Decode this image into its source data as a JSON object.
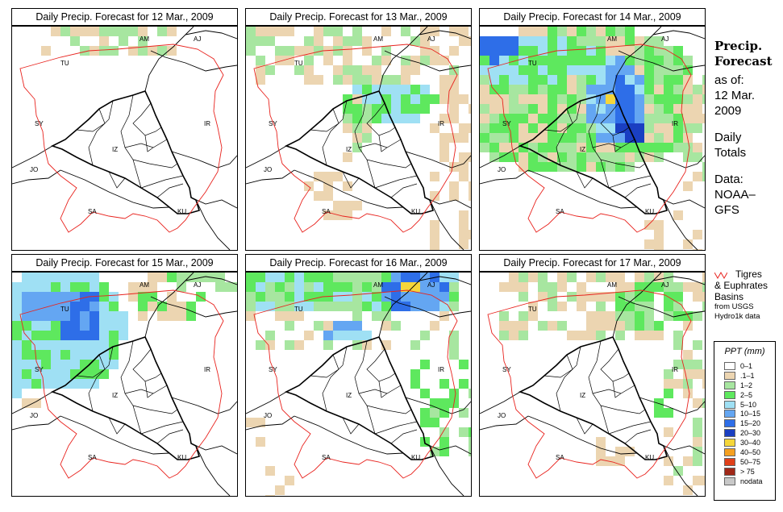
{
  "panels": [
    {
      "title": "Daily Precip. Forecast for  12 Mar., 2009",
      "day": 0
    },
    {
      "title": "Daily Precip. Forecast for  13 Mar., 2009",
      "day": 1
    },
    {
      "title": "Daily Precip. Forecast for  14 Mar., 2009",
      "day": 2
    },
    {
      "title": "Daily Precip. Forecast for  15 Mar., 2009",
      "day": 3
    },
    {
      "title": "Daily Precip. Forecast for  16 Mar., 2009",
      "day": 4
    },
    {
      "title": "Daily Precip. Forecast for  17 Mar., 2009",
      "day": 5
    }
  ],
  "country_labels": [
    "AM",
    "AJ",
    "TU",
    "SY",
    "IR",
    "IZ",
    "JO",
    "SA",
    "KU"
  ],
  "sidebar": {
    "heading1": "Precip.",
    "heading2": "Forecast",
    "asof": "as of:",
    "date1": "12 Mar.",
    "date2": "2009",
    "daily1": "Daily",
    "daily2": "Totals",
    "data1": "Data:",
    "data2": "NOAA–",
    "data3": "GFS"
  },
  "basin_note": {
    "line1": "Tigres",
    "line2": "& Euphrates",
    "line3": "Basins",
    "line4": "from USGS",
    "line5": "Hydro1k data",
    "line_color": "#e8231e"
  },
  "legend": {
    "title": "PPT (mm)",
    "items": [
      {
        "label": "0–1",
        "color": "#ffffff"
      },
      {
        "label": ".1–1",
        "color": "#ecd5b1"
      },
      {
        "label": "1–2",
        "color": "#a7e6a0"
      },
      {
        "label": "2–5",
        "color": "#5ee85e"
      },
      {
        "label": "5–10",
        "color": "#9fe0f4"
      },
      {
        "label": "10–15",
        "color": "#64a6f2"
      },
      {
        "label": "15–20",
        "color": "#2e6ee8"
      },
      {
        "label": "20–30",
        "color": "#1a3fc2"
      },
      {
        "label": "30–40",
        "color": "#f5d63a"
      },
      {
        "label": "40–50",
        "color": "#f5a020"
      },
      {
        "label": "50–75",
        "color": "#e0401a"
      },
      {
        "label": "> 75",
        "color": "#a02818"
      },
      {
        "label": "nodata",
        "color": "#c8c8c8"
      }
    ]
  },
  "precip_forecast": [
    {
      "day": "12 Mar., 2009",
      "areas": [
        {
          "region": "north strip near TU/AM",
          "class": ".1-1"
        },
        {
          "region": "north strip near TU/AM",
          "class": "1-2"
        }
      ]
    },
    {
      "day": "13 Mar., 2009",
      "areas": [
        {
          "region": "north TU and AM",
          "class": ".1-1"
        },
        {
          "region": "north TU and AM",
          "class": "1-2"
        },
        {
          "region": "upper Tigris",
          "class": "5-10"
        },
        {
          "region": "west Iraq to SA",
          "class": ".1-1"
        }
      ]
    },
    {
      "day": "14 Mar., 2009",
      "areas": [
        {
          "region": "TU, Iraq, west IR",
          "class": "2-5"
        },
        {
          "region": "north-west corner",
          "class": "15-20"
        },
        {
          "region": "Iraq/IR border",
          "class": "20-30"
        },
        {
          "region": "Iraq/IR border",
          "class": "30-40"
        }
      ]
    },
    {
      "day": "15 Mar., 2009",
      "areas": [
        {
          "region": "TU and SY",
          "class": "5-10"
        },
        {
          "region": "central TU",
          "class": "15-20"
        },
        {
          "region": "north-east AM/AJ",
          "class": "1-2"
        }
      ]
    },
    {
      "day": "16 Mar., 2009",
      "areas": [
        {
          "region": "north TU and AM",
          "class": "5-10"
        },
        {
          "region": "AJ",
          "class": "20-30"
        },
        {
          "region": "AJ",
          "class": "30-40"
        },
        {
          "region": "east Iraq and IR",
          "class": "2-5"
        }
      ]
    },
    {
      "day": "17 Mar., 2009",
      "areas": [
        {
          "region": "north TU and AM",
          "class": ".1-1"
        },
        {
          "region": "north-east",
          "class": "2-5"
        },
        {
          "region": "east IR to KU",
          "class": ".1-1"
        }
      ]
    }
  ]
}
